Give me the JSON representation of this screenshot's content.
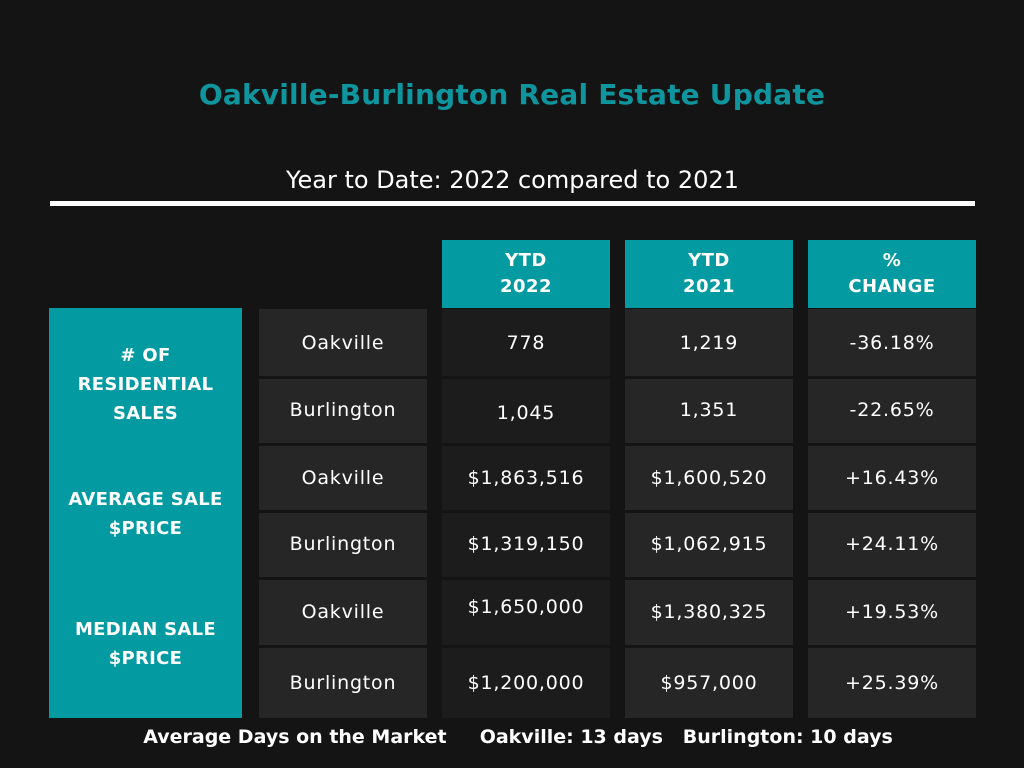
{
  "title": "Oakville-Burlington Real Estate Update",
  "subtitle": "Year to Date: 2022 compared to 2021",
  "colors": {
    "background": "#141414",
    "accent": "#039aa1",
    "title": "#0f959d",
    "cell": "#262626",
    "cell_dark": "#1c1c1c"
  },
  "chart_data": {
    "type": "table",
    "title": "Oakville-Burlington Real Estate Update",
    "subtitle": "Year to Date: 2022 compared to 2021",
    "columns": [
      {
        "line1": "YTD",
        "line2": "2022"
      },
      {
        "line1": "YTD",
        "line2": "2021"
      },
      {
        "line1": "%",
        "line2": "CHANGE"
      }
    ],
    "metrics": [
      {
        "lines": [
          "# OF",
          "RESIDENTIAL",
          "SALES"
        ]
      },
      {
        "lines": [
          "AVERAGE SALE",
          "$PRICE"
        ]
      },
      {
        "lines": [
          "MEDIAN SALE",
          "$PRICE"
        ]
      }
    ],
    "rows": [
      {
        "city": "Oakville",
        "ytd_2022": "778",
        "ytd_2021": "1,219",
        "change": "-36.18%"
      },
      {
        "city": "Burlington",
        "ytd_2022": "1,045",
        "ytd_2021": "1,351",
        "change": "-22.65%"
      },
      {
        "city": "Oakville",
        "ytd_2022": "$1,863,516",
        "ytd_2021": "$1,600,520",
        "change": "+16.43%"
      },
      {
        "city": "Burlington",
        "ytd_2022": "$1,319,150",
        "ytd_2021": "$1,062,915",
        "change": "+24.11%"
      },
      {
        "city": "Oakville",
        "ytd_2022": "$1,650,000",
        "ytd_2021": "$1,380,325",
        "change": "+19.53%"
      },
      {
        "city": "Burlington",
        "ytd_2022": "$1,200,000",
        "ytd_2021": "$957,000",
        "change": "+25.39%"
      }
    ]
  },
  "footer": {
    "label": "Average Days on the Market",
    "oakville": "Oakville: 13 days",
    "burlington": "Burlington: 10 days"
  }
}
